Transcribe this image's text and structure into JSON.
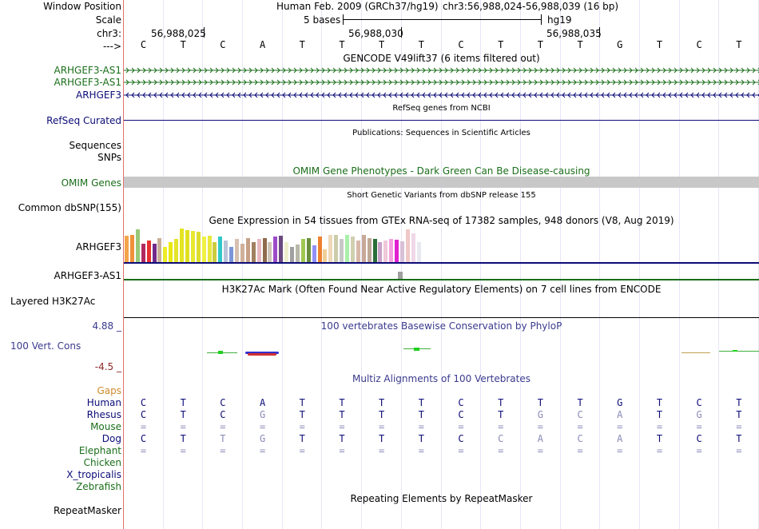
{
  "header": {
    "window_position_label": "Window Position",
    "scale_label": "Scale",
    "chrom_label": "chr3:",
    "arrow_label": "--->",
    "assembly": "Human Feb. 2009 (GRCh37/hg19)",
    "position": "chr3:56,988,024-56,988,039 (16 bp)",
    "scale_text": "5 bases",
    "db": "hg19",
    "coords": [
      "56,988,025",
      "56,988,030",
      "56,988,035"
    ]
  },
  "sequence": [
    "C",
    "T",
    "C",
    "A",
    "T",
    "T",
    "T",
    "T",
    "C",
    "T",
    "T",
    "T",
    "G",
    "T",
    "C",
    "T"
  ],
  "tracks": {
    "gencode": {
      "title": "GENCODE V49lift37 (6 items filtered out)",
      "items": [
        {
          "name": "ARHGEF3-AS1",
          "strand": "+",
          "color": "#1a6e1a"
        },
        {
          "name": "ARHGEF3-AS1",
          "strand": "+",
          "color": "#1a6e1a"
        },
        {
          "name": "ARHGEF3",
          "strand": "-",
          "color": "#0c0c78"
        }
      ]
    },
    "refseq": {
      "title": "RefSeq genes from NCBI",
      "label": "RefSeq Curated",
      "color": "#0c0c78"
    },
    "publications": {
      "title": "Publications: Sequences in Scientific Articles",
      "labels": [
        "Sequences",
        "SNPs"
      ]
    },
    "omim": {
      "title": "OMIM Gene Phenotypes - Dark Green Can Be Disease-causing",
      "label": "OMIM Genes",
      "color": "#1a6e1a"
    },
    "dbsnp": {
      "title": "Short Genetic Variants from dbSNP release 155",
      "label": "Common dbSNP(155)"
    },
    "gtex": {
      "title": "Gene Expression in 54 tissues from GTEx RNA-seq of 17382 samples, 948 donors (V8, Aug 2019)",
      "genes": [
        "ARHGEF3",
        "ARHGEF3-AS1"
      ],
      "bar_levels": [
        0.78,
        0.82,
        0.98,
        0.55,
        0.65,
        0.55,
        0.72,
        0.45,
        0.6,
        0.7,
        1.0,
        0.95,
        0.93,
        0.9,
        0.75,
        0.78,
        0.6,
        0.75,
        0.65,
        0.45,
        0.7,
        0.55,
        0.72,
        0.6,
        0.68,
        0.72,
        0.6,
        0.75,
        0.78,
        0.6,
        0.45,
        0.52,
        0.7,
        0.72,
        0.5,
        0.75,
        0.38,
        0.82,
        0.8,
        0.7,
        0.8,
        0.75,
        0.65,
        0.82,
        0.72,
        0.7,
        0.6,
        0.65,
        0.7,
        0.66,
        0.62,
        0.98,
        0.85,
        0.6
      ],
      "bar_colors": [
        "#f4a44a",
        "#f0913a",
        "#98c878",
        "#b02a60",
        "#e83030",
        "#702a8a",
        "#c8b098",
        "#ecec26",
        "#e8e810",
        "#e4e42c",
        "#e4e422",
        "#e0e020",
        "#e8e830",
        "#dddd30",
        "#f0f044",
        "#e8e83c",
        "#cccc40",
        "#30c8c8",
        "#b8c4d8",
        "#7a96d6",
        "#d8c0b0",
        "#d0b09c",
        "#c8a088",
        "#a08060",
        "#e8b8c0",
        "#8e6a4c",
        "#cfc4b8",
        "#9c4cc8",
        "#6a4880",
        "#eeeecc",
        "#a0a0a0",
        "#b8b8a8",
        "#a0c850",
        "#6a8e3e",
        "#9090f8",
        "#ee8030",
        "#f0d098",
        "#eed8b8",
        "#ccccaa",
        "#c8c8c8",
        "#aaf0aa",
        "#d0d0b0",
        "#d8b8a8",
        "#c8a898",
        "#c0a898",
        "#2a6e3a",
        "#c8a0c8",
        "#f0c8d8",
        "#f4a0e0",
        "#e020d0",
        "#d8c0d8",
        "#f0c8c8",
        "#f0d8e8",
        "#e8e8f0"
      ]
    },
    "h3k27ac": {
      "title": "H3K27Ac Mark (Often Found Near Active Regulatory Elements) on 7 cell lines from ENCODE",
      "label": "Layered H3K27Ac"
    },
    "conservation": {
      "title": "100 vertebrates Basewise Conservation by PhyloP",
      "label": "100 Vert. Cons",
      "max": "4.88 _",
      "min": "-4.5 _",
      "title_color": "#3a3a8e",
      "max_color": "#3a3a8e",
      "min_color": "#8e2a2a"
    },
    "multiz": {
      "title": "Multiz Alignments of 100 Vertebrates",
      "gaps_label": "Gaps",
      "gaps_color": "#d08a2a",
      "species": [
        {
          "name": "Human",
          "color": "#0c0c78",
          "bases": [
            "C",
            "T",
            "C",
            "A",
            "T",
            "T",
            "T",
            "T",
            "C",
            "T",
            "T",
            "T",
            "G",
            "T",
            "C",
            "T"
          ],
          "faded": [
            false,
            false,
            false,
            false,
            false,
            false,
            false,
            false,
            false,
            false,
            false,
            false,
            false,
            false,
            false,
            false
          ]
        },
        {
          "name": "Rhesus",
          "color": "#0c0c78",
          "bases": [
            "C",
            "T",
            "C",
            "G",
            "T",
            "T",
            "T",
            "T",
            "C",
            "T",
            "G",
            "C",
            "A",
            "T",
            "G",
            "T"
          ],
          "faded": [
            false,
            false,
            false,
            true,
            false,
            false,
            false,
            false,
            false,
            false,
            true,
            true,
            true,
            false,
            true,
            false
          ]
        },
        {
          "name": "Mouse",
          "color": "#1a6e1a",
          "bases": [
            "=",
            "=",
            "=",
            "=",
            "=",
            "=",
            "=",
            "=",
            "=",
            "=",
            "=",
            "=",
            "=",
            "=",
            "=",
            "="
          ],
          "faded": [
            true,
            true,
            true,
            true,
            true,
            true,
            true,
            true,
            true,
            true,
            true,
            true,
            true,
            true,
            true,
            true
          ]
        },
        {
          "name": "Dog",
          "color": "#0c0c78",
          "bases": [
            "C",
            "T",
            "T",
            "G",
            "T",
            "T",
            "T",
            "T",
            "C",
            "C",
            "A",
            "C",
            "A",
            "T",
            "C",
            "T"
          ],
          "faded": [
            false,
            false,
            true,
            true,
            false,
            false,
            false,
            false,
            false,
            true,
            true,
            true,
            true,
            false,
            false,
            false
          ]
        },
        {
          "name": "Elephant",
          "color": "#1a6e1a",
          "bases": [
            "=",
            "=",
            "=",
            "=",
            "=",
            "=",
            "=",
            "=",
            "=",
            "=",
            "=",
            "=",
            "=",
            "=",
            "=",
            "="
          ],
          "faded": [
            true,
            true,
            true,
            true,
            true,
            true,
            true,
            true,
            true,
            true,
            true,
            true,
            true,
            true,
            true,
            true
          ]
        },
        {
          "name": "Chicken",
          "color": "#1a6e1a",
          "bases": [],
          "faded": []
        },
        {
          "name": "X_tropicalis",
          "color": "#0c0c78",
          "bases": [],
          "faded": []
        },
        {
          "name": "Zebrafish",
          "color": "#1a6e1a",
          "bases": [],
          "faded": []
        }
      ]
    },
    "repeatmasker": {
      "title": "Repeating Elements by RepeatMasker",
      "label": "RepeatMasker"
    }
  }
}
